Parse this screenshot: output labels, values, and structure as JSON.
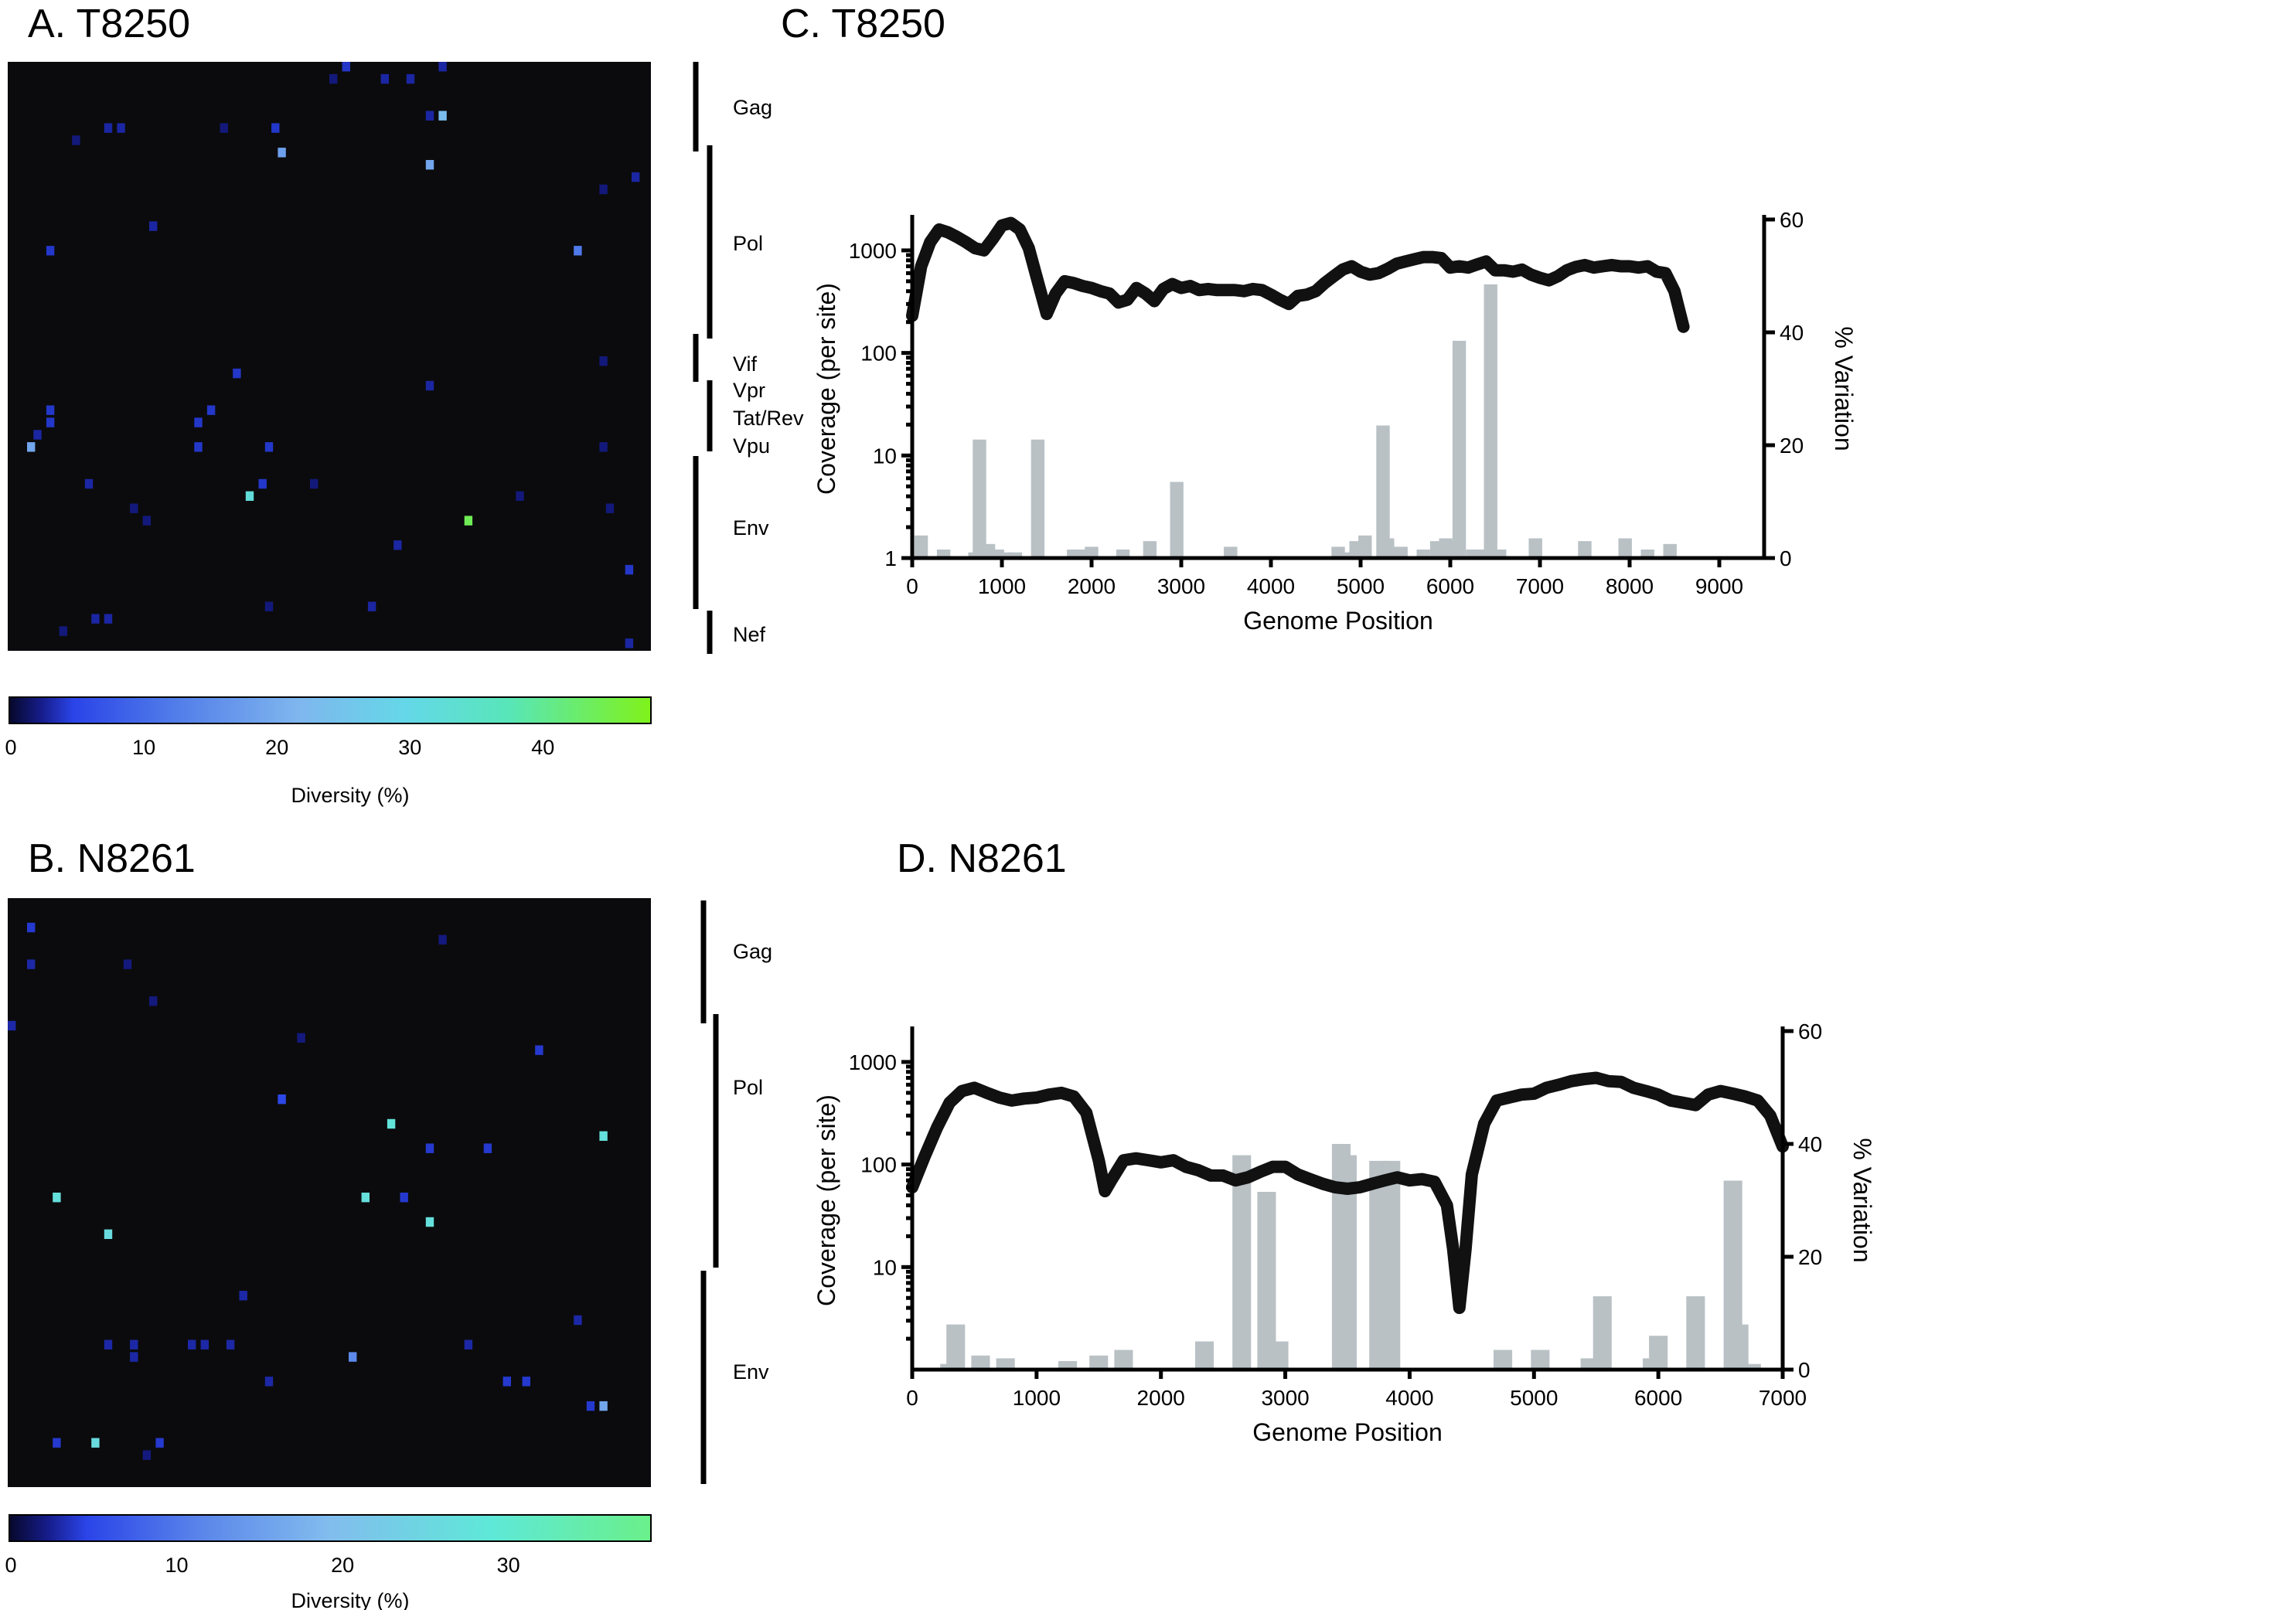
{
  "panels": {
    "A": {
      "title": "A. T8250"
    },
    "B": {
      "title": "B. N8261"
    },
    "C": {
      "title": "C. T8250"
    },
    "D": {
      "title": "D. N8261"
    }
  },
  "colors": {
    "heatmap_background": "#0b0b0d",
    "coverage_line": "#111111",
    "variation_bars": "#b9c1c5",
    "scale_low": "#0a0e3c",
    "scale_blue": "#2a44e8",
    "scale_mid": "#6fa8ee",
    "scale_cyan": "#5ee4e0",
    "scale_high": "#7ff21a"
  },
  "heatmaps": [
    {
      "id": "A",
      "rows": 48,
      "cols": 100,
      "genes": [
        "Gag",
        "Pol",
        "Vif",
        "Vpr",
        "Tat/Rev",
        "Vpu",
        "Env",
        "Nef"
      ],
      "colorbar": {
        "label": "Diversity (%)",
        "ticks": [
          "0",
          "10",
          "20",
          "30",
          "40"
        ],
        "max": 48
      },
      "cells": [
        {
          "r": 0,
          "c": 52,
          "v": 4
        },
        {
          "r": 1,
          "c": 50,
          "v": 2
        },
        {
          "r": 1,
          "c": 58,
          "v": 3
        },
        {
          "r": 1,
          "c": 62,
          "v": 3
        },
        {
          "r": 0,
          "c": 67,
          "v": 3
        },
        {
          "r": 4,
          "c": 65,
          "v": 3
        },
        {
          "r": 4,
          "c": 67,
          "v": 23
        },
        {
          "r": 5,
          "c": 41,
          "v": 4
        },
        {
          "r": 5,
          "c": 15,
          "v": 3
        },
        {
          "r": 5,
          "c": 17,
          "v": 3
        },
        {
          "r": 6,
          "c": 10,
          "v": 2
        },
        {
          "r": 5,
          "c": 33,
          "v": 2
        },
        {
          "r": 7,
          "c": 42,
          "v": 18
        },
        {
          "r": 8,
          "c": 65,
          "v": 19
        },
        {
          "r": 9,
          "c": 97,
          "v": 3
        },
        {
          "r": 10,
          "c": 92,
          "v": 2
        },
        {
          "r": 13,
          "c": 22,
          "v": 3
        },
        {
          "r": 15,
          "c": 6,
          "v": 4
        },
        {
          "r": 15,
          "c": 88,
          "v": 12
        },
        {
          "r": 24,
          "c": 92,
          "v": 2
        },
        {
          "r": 25,
          "c": 35,
          "v": 4
        },
        {
          "r": 26,
          "c": 65,
          "v": 3
        },
        {
          "r": 28,
          "c": 6,
          "v": 4
        },
        {
          "r": 28,
          "c": 31,
          "v": 4
        },
        {
          "r": 29,
          "c": 6,
          "v": 4
        },
        {
          "r": 29,
          "c": 29,
          "v": 4
        },
        {
          "r": 30,
          "c": 4,
          "v": 3
        },
        {
          "r": 31,
          "c": 3,
          "v": 19
        },
        {
          "r": 31,
          "c": 29,
          "v": 4
        },
        {
          "r": 31,
          "c": 40,
          "v": 4
        },
        {
          "r": 31,
          "c": 92,
          "v": 2
        },
        {
          "r": 34,
          "c": 12,
          "v": 3
        },
        {
          "r": 34,
          "c": 39,
          "v": 4
        },
        {
          "r": 35,
          "c": 37,
          "v": 32
        },
        {
          "r": 34,
          "c": 47,
          "v": 2
        },
        {
          "r": 35,
          "c": 79,
          "v": 2
        },
        {
          "r": 36,
          "c": 93,
          "v": 2
        },
        {
          "r": 36,
          "c": 19,
          "v": 2
        },
        {
          "r": 37,
          "c": 21,
          "v": 2
        },
        {
          "r": 37,
          "c": 71,
          "v": 44
        },
        {
          "r": 39,
          "c": 60,
          "v": 3
        },
        {
          "r": 41,
          "c": 96,
          "v": 4
        },
        {
          "r": 44,
          "c": 40,
          "v": 2
        },
        {
          "r": 44,
          "c": 56,
          "v": 3
        },
        {
          "r": 45,
          "c": 13,
          "v": 3
        },
        {
          "r": 45,
          "c": 15,
          "v": 3
        },
        {
          "r": 46,
          "c": 8,
          "v": 2
        },
        {
          "r": 47,
          "c": 96,
          "v": 3
        }
      ]
    },
    {
      "id": "B",
      "rows": 48,
      "cols": 100,
      "genes": [
        "Gag",
        "Pol",
        "Env"
      ],
      "colorbar": {
        "label": "Diversity (%)",
        "ticks": [
          "0",
          "10",
          "20",
          "30"
        ],
        "max": 38.5
      },
      "cells": [
        {
          "r": 2,
          "c": 3,
          "v": 4
        },
        {
          "r": 3,
          "c": 67,
          "v": 2
        },
        {
          "r": 5,
          "c": 3,
          "v": 3
        },
        {
          "r": 5,
          "c": 18,
          "v": 2
        },
        {
          "r": 8,
          "c": 22,
          "v": 2
        },
        {
          "r": 10,
          "c": 0,
          "v": 3
        },
        {
          "r": 11,
          "c": 45,
          "v": 2
        },
        {
          "r": 12,
          "c": 82,
          "v": 4
        },
        {
          "r": 16,
          "c": 42,
          "v": 5
        },
        {
          "r": 18,
          "c": 59,
          "v": 28
        },
        {
          "r": 19,
          "c": 92,
          "v": 27
        },
        {
          "r": 20,
          "c": 65,
          "v": 4
        },
        {
          "r": 20,
          "c": 74,
          "v": 4
        },
        {
          "r": 24,
          "c": 7,
          "v": 27
        },
        {
          "r": 24,
          "c": 55,
          "v": 27
        },
        {
          "r": 24,
          "c": 61,
          "v": 4
        },
        {
          "r": 26,
          "c": 65,
          "v": 27
        },
        {
          "r": 27,
          "c": 15,
          "v": 26
        },
        {
          "r": 32,
          "c": 36,
          "v": 3
        },
        {
          "r": 34,
          "c": 88,
          "v": 3
        },
        {
          "r": 36,
          "c": 15,
          "v": 3
        },
        {
          "r": 36,
          "c": 19,
          "v": 3
        },
        {
          "r": 36,
          "c": 28,
          "v": 3
        },
        {
          "r": 36,
          "c": 30,
          "v": 3
        },
        {
          "r": 36,
          "c": 34,
          "v": 3
        },
        {
          "r": 36,
          "c": 71,
          "v": 3
        },
        {
          "r": 37,
          "c": 19,
          "v": 3
        },
        {
          "r": 37,
          "c": 53,
          "v": 12
        },
        {
          "r": 39,
          "c": 40,
          "v": 3
        },
        {
          "r": 39,
          "c": 77,
          "v": 4
        },
        {
          "r": 39,
          "c": 80,
          "v": 4
        },
        {
          "r": 41,
          "c": 90,
          "v": 4
        },
        {
          "r": 41,
          "c": 92,
          "v": 16
        },
        {
          "r": 44,
          "c": 7,
          "v": 4
        },
        {
          "r": 44,
          "c": 13,
          "v": 26
        },
        {
          "r": 44,
          "c": 23,
          "v": 4
        },
        {
          "r": 45,
          "c": 21,
          "v": 2
        }
      ]
    }
  ],
  "chart_data": [
    {
      "panel": "C",
      "type": "bar+line",
      "title": "C. T8250",
      "xlabel": "Genome Position",
      "ylabel_left": "Coverage (per site)",
      "ylabel_right": "% Variation",
      "xlim": [
        0,
        9500
      ],
      "ylim_left": [
        1,
        2000
      ],
      "ylim_right": [
        0,
        60
      ],
      "x_ticks": [
        0,
        1000,
        2000,
        3000,
        4000,
        5000,
        6000,
        7000,
        8000,
        9000
      ],
      "y_left_ticks": [
        1,
        10,
        100,
        1000
      ],
      "y_right_ticks": [
        0,
        20,
        40,
        60
      ],
      "left_scale": "log",
      "series": [
        {
          "name": "",
          "kind": "line",
          "axis": "left",
          "x": [
            0,
            100,
            200,
            300,
            400,
            500,
            600,
            700,
            800,
            900,
            1000,
            1100,
            1200,
            1300,
            1400,
            1500,
            1600,
            1700,
            1800,
            1900,
            2000,
            2100,
            2200,
            2300,
            2400,
            2500,
            2600,
            2700,
            2800,
            2900,
            3000,
            3100,
            3200,
            3300,
            3400,
            3500,
            3600,
            3700,
            3800,
            3900,
            4000,
            4100,
            4200,
            4300,
            4400,
            4500,
            4600,
            4700,
            4800,
            4900,
            5000,
            5100,
            5200,
            5300,
            5400,
            5500,
            5600,
            5700,
            5800,
            5900,
            6000,
            6100,
            6200,
            6300,
            6400,
            6500,
            6600,
            6700,
            6800,
            6900,
            7000,
            7100,
            7200,
            7300,
            7400,
            7500,
            7600,
            7700,
            7800,
            7900,
            8000,
            8100,
            8200,
            8300,
            8400,
            8500,
            8600
          ],
          "y": [
            230,
            700,
            1200,
            1600,
            1500,
            1350,
            1200,
            1050,
            1000,
            1300,
            1750,
            1850,
            1600,
            1050,
            500,
            240,
            380,
            500,
            480,
            450,
            430,
            400,
            380,
            310,
            330,
            430,
            380,
            320,
            420,
            470,
            430,
            450,
            410,
            420,
            410,
            410,
            410,
            400,
            420,
            410,
            370,
            330,
            300,
            360,
            370,
            400,
            480,
            560,
            650,
            700,
            620,
            580,
            600,
            660,
            740,
            780,
            820,
            860,
            860,
            840,
            680,
            700,
            680,
            730,
            780,
            640,
            640,
            620,
            650,
            580,
            540,
            510,
            560,
            640,
            690,
            720,
            680,
            700,
            720,
            700,
            700,
            680,
            700,
            620,
            600,
            400,
            180
          ]
        },
        {
          "name": "",
          "kind": "bars",
          "axis": "right",
          "x": [
            100,
            350,
            700,
            750,
            850,
            950,
            1050,
            1150,
            1400,
            1800,
            1950,
            2000,
            2350,
            2650,
            2950,
            3550,
            4750,
            4850,
            4950,
            5050,
            5250,
            5300,
            5450,
            5700,
            5850,
            5950,
            6000,
            6100,
            6250,
            6350,
            6450,
            6550,
            6950,
            7500,
            7950,
            8200,
            8450
          ],
          "y": [
            4,
            1.5,
            1,
            21,
            2.5,
            1.5,
            1,
            1,
            21,
            1.5,
            1.5,
            2,
            1.5,
            3,
            13.5,
            2,
            2,
            1,
            3,
            4,
            23.5,
            3.5,
            2,
            1.5,
            3,
            3.5,
            3,
            38.5,
            1.5,
            1.5,
            48.5,
            1.5,
            3.5,
            3,
            3.5,
            1.5,
            2.5
          ]
        }
      ]
    },
    {
      "panel": "D",
      "type": "bar+line",
      "title": "D. N8261",
      "xlabel": "Genome Position",
      "ylabel_left": "Coverage (per site)",
      "ylabel_right": "% Variation",
      "xlim": [
        0,
        7000
      ],
      "ylim_left": [
        1,
        2000
      ],
      "ylim_right": [
        0,
        60
      ],
      "x_ticks": [
        0,
        1000,
        2000,
        3000,
        4000,
        5000,
        6000,
        7000
      ],
      "y_left_ticks": [
        10,
        100,
        1000
      ],
      "y_right_ticks": [
        0,
        20,
        40,
        60
      ],
      "left_scale": "log",
      "series": [
        {
          "name": "",
          "kind": "line",
          "axis": "left",
          "x": [
            0,
            100,
            200,
            300,
            400,
            500,
            600,
            700,
            800,
            900,
            1000,
            1100,
            1200,
            1300,
            1400,
            1500,
            1550,
            1600,
            1700,
            1800,
            1900,
            2000,
            2100,
            2200,
            2300,
            2400,
            2500,
            2600,
            2700,
            2800,
            2900,
            3000,
            3100,
            3200,
            3300,
            3400,
            3500,
            3600,
            3700,
            3800,
            3900,
            4000,
            4100,
            4200,
            4300,
            4350,
            4400,
            4450,
            4500,
            4600,
            4700,
            4800,
            4900,
            5000,
            5100,
            5200,
            5300,
            5400,
            5500,
            5600,
            5700,
            5800,
            5900,
            6000,
            6100,
            6200,
            6300,
            6400,
            6500,
            6600,
            6700,
            6800,
            6900,
            7000
          ],
          "y": [
            60,
            120,
            230,
            400,
            520,
            560,
            500,
            450,
            420,
            440,
            450,
            480,
            500,
            460,
            320,
            110,
            55,
            70,
            110,
            115,
            110,
            105,
            110,
            95,
            88,
            78,
            78,
            70,
            75,
            85,
            95,
            95,
            80,
            72,
            65,
            60,
            58,
            60,
            65,
            70,
            75,
            70,
            72,
            68,
            40,
            15,
            4,
            15,
            80,
            250,
            420,
            450,
            480,
            490,
            560,
            600,
            650,
            680,
            700,
            650,
            640,
            560,
            520,
            480,
            420,
            400,
            380,
            480,
            520,
            490,
            460,
            420,
            300,
            150
          ]
        },
        {
          "name": "",
          "kind": "bars",
          "axis": "right",
          "x": [
            300,
            350,
            550,
            750,
            1250,
            1500,
            1700,
            2350,
            2650,
            2850,
            2950,
            3450,
            3500,
            3750,
            3850,
            4750,
            5050,
            5450,
            5550,
            5950,
            6000,
            6300,
            6600,
            6650,
            6750
          ],
          "y": [
            1,
            8,
            2.5,
            2,
            1.5,
            2.5,
            3.5,
            5,
            38,
            31.5,
            5,
            40,
            38,
            37,
            37,
            3.5,
            3.5,
            2,
            13,
            2,
            6,
            13,
            33.5,
            8,
            1
          ]
        }
      ]
    }
  ]
}
